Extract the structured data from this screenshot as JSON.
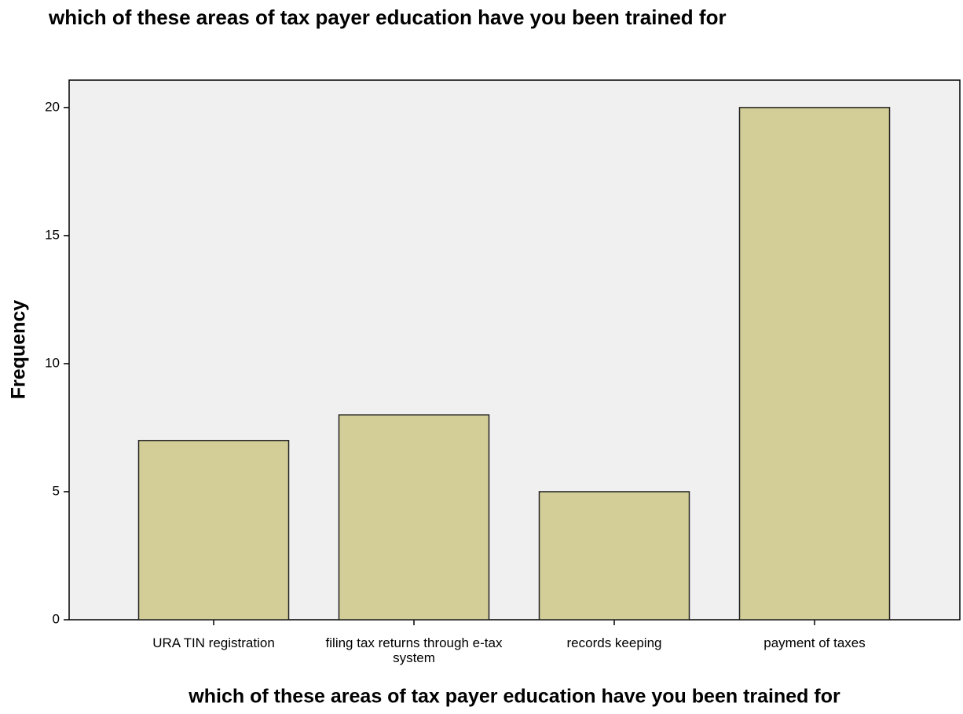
{
  "chart_data": {
    "type": "bar",
    "title": "which of these areas of tax payer education have you been trained for",
    "x_label": "which of these areas of tax payer education have you been trained for",
    "y_label": "Frequency",
    "categories": [
      "URA TIN registration",
      "filing tax returns through e-tax system",
      "records keeping",
      "payment of taxes"
    ],
    "values": [
      7,
      8,
      5,
      20
    ],
    "color": "#d3ce97",
    "ylim": [
      0,
      21.07
    ],
    "yticks": [
      0,
      5,
      10,
      15,
      20
    ],
    "grid": false
  }
}
